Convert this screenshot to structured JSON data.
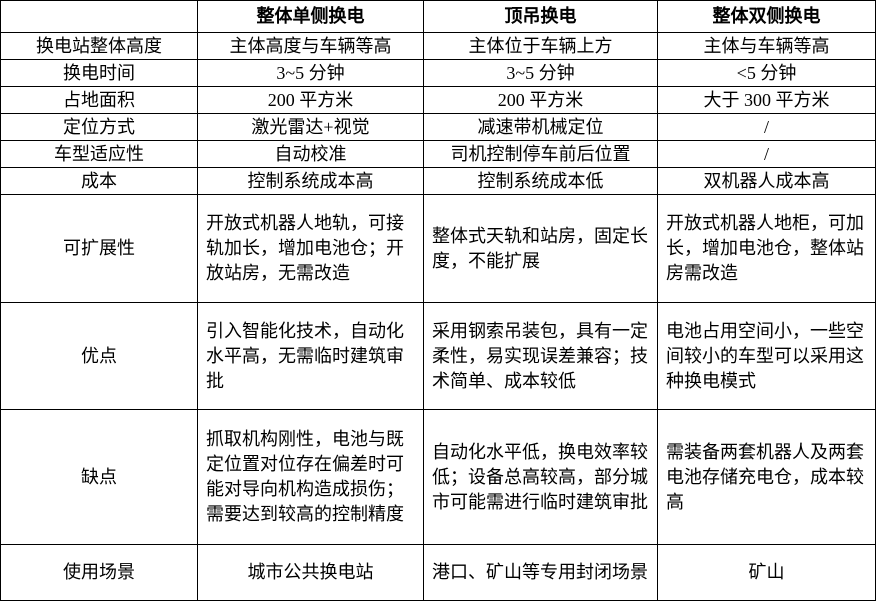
{
  "table": {
    "header": [
      "",
      "整体单侧换电",
      "顶吊换电",
      "整体双侧换电"
    ],
    "rows": [
      [
        "换电站整体高度",
        "主体高度与车辆等高",
        "主体位于车辆上方",
        "主体与车辆等高"
      ],
      [
        "换电时间",
        "3~5 分钟",
        "3~5 分钟",
        "<5 分钟"
      ],
      [
        "占地面积",
        "200 平方米",
        "200 平方米",
        "大于 300 平方米"
      ],
      [
        "定位方式",
        "激光雷达+视觉",
        "减速带机械定位",
        "/"
      ],
      [
        "车型适应性",
        "自动校准",
        "司机控制停车前后位置",
        "/"
      ],
      [
        "成本",
        "控制系统成本高",
        "控制系统成本低",
        "双机器人成本高"
      ],
      [
        "可扩展性",
        "开放式机器人地轨，可接轨加长，增加电池仓；开放站房，无需改造",
        "整体式天轨和站房，固定长度，不能扩展",
        "开放式机器人地柜，可加长，增加电池仓，整体站房需改造"
      ],
      [
        "优点",
        "引入智能化技术，自动化水平高，无需临时建筑审批",
        "采用钢索吊装包，具有一定柔性，易实现误差兼容；技术简单、成本较低",
        "电池占用空间小，一些空间较小的车型可以采用这种换电模式"
      ],
      [
        "缺点",
        "抓取机构刚性，电池与既定位置对位存在偏差时可能对导向机构造成损伤；需要达到较高的控制精度",
        "自动化水平低，换电效率较低；设备总高较高，部分城市可能需进行临时建筑审批",
        "需装备两套机器人及两套电池存储充电仓，成本较高"
      ],
      [
        "使用场景",
        "城市公共换电站",
        "港口、矿山等专用封闭场景",
        "矿山"
      ]
    ]
  }
}
